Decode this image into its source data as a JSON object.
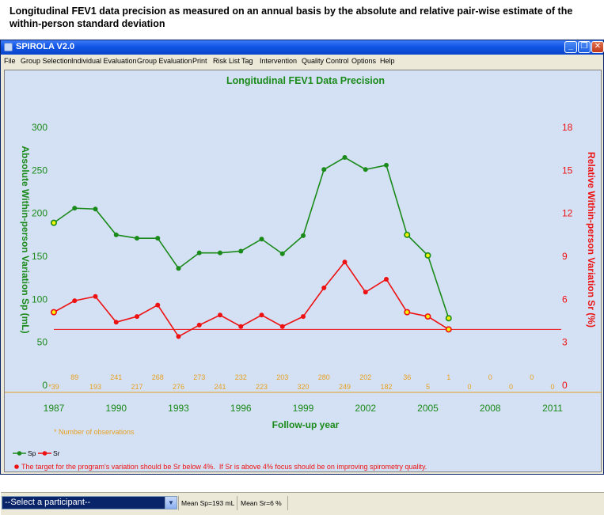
{
  "caption": "Longitudinal FEV1 data precision as measured on an annual basis by the absolute and relative pair-wise estimate of the within-person standard deviation",
  "window": {
    "title": "SPIROLA V2.0",
    "minimize_glyph": "_",
    "restore_glyph": "❐",
    "close_glyph": "✕"
  },
  "menu": [
    "File",
    "Group Selection",
    "Individual Evaluation",
    "Group Evaluation",
    "Print",
    "Risk List",
    "Tag",
    "Intervention",
    "Quality Control",
    "Options",
    "Help"
  ],
  "chart_data": {
    "type": "line",
    "title": "Longitudinal FEV1 Data Precision",
    "xlabel": "Follow-up year",
    "ylabel_left": "Absolute Within-person Variation Sp (mL)",
    "ylabel_right": "Relative Within-person Variation Sr (%)",
    "x_ticks": [
      1987,
      1990,
      1993,
      1996,
      1999,
      2002,
      2005,
      2008,
      2011
    ],
    "xlim": [
      1987,
      2011
    ],
    "ylim_left": [
      0,
      300
    ],
    "yticks_left": [
      0,
      50,
      100,
      150,
      200,
      250,
      300
    ],
    "ylim_right": [
      0,
      18
    ],
    "yticks_right": [
      0,
      3,
      6,
      9,
      12,
      15,
      18
    ],
    "series": [
      {
        "name": "Sp",
        "axis": "left",
        "color": "#1a8a1a",
        "x": [
          1987,
          1988,
          1989,
          1990,
          1991,
          1992,
          1993,
          1994,
          1995,
          1996,
          1997,
          1998,
          1999,
          2000,
          2001,
          2002,
          2003,
          2004,
          2005,
          2006
        ],
        "y": [
          189,
          206,
          205,
          175,
          171,
          171,
          136,
          154,
          154,
          156,
          170,
          153,
          174,
          251,
          265,
          251,
          256,
          175,
          151,
          78
        ],
        "highlighted": [
          1987,
          2004,
          2005,
          2006
        ]
      },
      {
        "name": "Sr",
        "axis": "right",
        "color": "#ee1111",
        "x": [
          1987,
          1988,
          1989,
          1990,
          1991,
          1992,
          1993,
          1994,
          1995,
          1996,
          1997,
          1998,
          1999,
          2000,
          2001,
          2002,
          2003,
          2004,
          2005,
          2006
        ],
        "y": [
          5.1,
          5.9,
          6.2,
          4.4,
          4.8,
          5.6,
          3.4,
          4.2,
          4.9,
          4.1,
          4.9,
          4.1,
          4.8,
          6.8,
          8.6,
          6.5,
          7.4,
          5.1,
          4.8,
          3.9
        ],
        "highlighted": [
          1987,
          2004,
          2005,
          2006
        ]
      }
    ],
    "target_line": {
      "axis": "right",
      "value": 3.9,
      "color": "#ee1111"
    },
    "observations": {
      "x": [
        1987,
        1988,
        1989,
        1990,
        1991,
        1992,
        1993,
        1994,
        1995,
        1996,
        1997,
        1998,
        1999,
        2000,
        2001,
        2002,
        2003,
        2004,
        2005,
        2006,
        2007,
        2008,
        2009,
        2010,
        2011
      ],
      "labels": [
        "*39",
        "89",
        "193",
        "241",
        "217",
        "268",
        "276",
        "273",
        "241",
        "232",
        "223",
        "203",
        "320",
        "280",
        "249",
        "202",
        "182",
        "36",
        "5",
        "1",
        "0",
        "0",
        "0",
        "0",
        "0"
      ],
      "color": "#e8a020"
    },
    "footnote": "* Number of observations",
    "legend": [
      "Sp",
      "Sr"
    ],
    "legend_placement": "bottom-left",
    "grid": false,
    "note": "The target for the program's variation should be Sr below 4%.  If Sr is above 4% focus should be on improving spirometry quality."
  },
  "status": {
    "select_value": "--Select a participant--",
    "select_arrow": "▼",
    "mean_sp": "Mean Sp=193 mL",
    "mean_sr": "Mean Sr=6 %"
  }
}
